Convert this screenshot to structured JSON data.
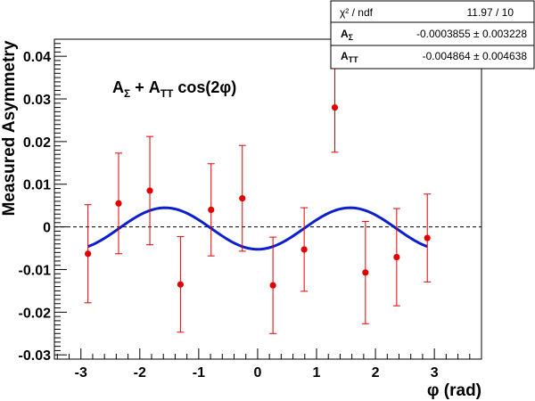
{
  "chart_data": {
    "type": "scatter",
    "title": "",
    "xlabel": "φ (rad)",
    "ylabel": "Measured Asymmetry",
    "xlim": [
      -3.45,
      3.8
    ],
    "ylim": [
      -0.031,
      0.044
    ],
    "x_ticks": [
      -3,
      -2,
      -1,
      0,
      1,
      2,
      3
    ],
    "x_tick_labels": [
      "-3",
      "-2",
      "-1",
      "0",
      "1",
      "2",
      "3"
    ],
    "y_ticks": [
      -0.03,
      -0.02,
      -0.01,
      0,
      0.01,
      0.02,
      0.03,
      0.04
    ],
    "y_tick_labels": [
      "-0.03",
      "-0.02",
      "-0.01",
      "0",
      "0.01",
      "0.02",
      "0.03",
      "0.04"
    ],
    "grid": false,
    "zero_line": true,
    "annotation": {
      "main": "A",
      "sub1": "Σ",
      "plus": " + A",
      "sub2": "TT",
      "tail": " cos(2φ)"
    },
    "series": [
      {
        "type": "points_with_errors",
        "color": "#e00000",
        "points": [
          {
            "x": -2.88,
            "y": -0.0063,
            "err": 0.0115
          },
          {
            "x": -2.36,
            "y": 0.0055,
            "err": 0.0118
          },
          {
            "x": -1.83,
            "y": 0.0085,
            "err": 0.0127
          },
          {
            "x": -1.31,
            "y": -0.0135,
            "err": 0.0112
          },
          {
            "x": -0.79,
            "y": 0.004,
            "err": 0.0108
          },
          {
            "x": -0.26,
            "y": 0.0067,
            "err": 0.0124
          },
          {
            "x": 0.26,
            "y": -0.0137,
            "err": 0.0113
          },
          {
            "x": 0.79,
            "y": -0.0053,
            "err": 0.0098
          },
          {
            "x": 1.31,
            "y": 0.028,
            "err": 0.0105
          },
          {
            "x": 1.83,
            "y": -0.0107,
            "err": 0.012
          },
          {
            "x": 2.36,
            "y": -0.0071,
            "err": 0.0114
          },
          {
            "x": 2.88,
            "y": -0.0026,
            "err": 0.0103
          }
        ]
      },
      {
        "type": "fit_curve",
        "color": "#0b1fd1",
        "function": "A_sigma + A_TT*cos(2*phi)",
        "x_range": [
          -2.88,
          2.88
        ],
        "params": {
          "A_sigma": -0.0003855,
          "A_TT": -0.004864
        }
      }
    ],
    "stats_box": {
      "rows": [
        {
          "label": "χ²",
          "label_tail": " / ndf",
          "value": "11.97 / 10"
        },
        {
          "label": "A",
          "sub": "Σ",
          "value": "-0.0003855 ± 0.003228"
        },
        {
          "label": "A",
          "sub": "TT",
          "value": "-0.004864 ± 0.004638"
        }
      ]
    }
  }
}
